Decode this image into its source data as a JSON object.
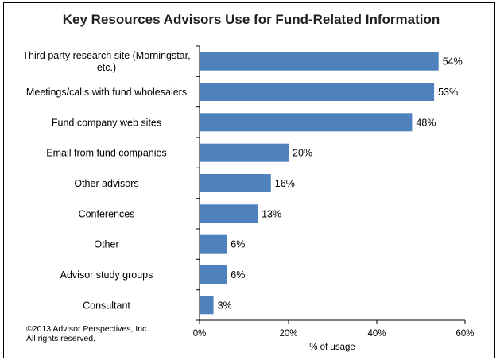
{
  "chart_data": {
    "type": "bar",
    "orientation": "horizontal",
    "title": "Key Resources Advisors Use for Fund-Related Information",
    "categories": [
      [
        "Third party research site (Morningstar,",
        "etc.)"
      ],
      [
        "Meetings/calls with fund wholesalers"
      ],
      [
        "Fund company web sites"
      ],
      [
        "Email from fund companies"
      ],
      [
        "Other advisors"
      ],
      [
        "Conferences"
      ],
      [
        "Other"
      ],
      [
        "Advisor study groups"
      ],
      [
        "Consultant"
      ]
    ],
    "values": [
      54,
      53,
      48,
      20,
      16,
      13,
      6,
      6,
      3
    ],
    "value_labels": [
      "54%",
      "53%",
      "48%",
      "20%",
      "16%",
      "13%",
      "6%",
      "6%",
      "3%"
    ],
    "xlabel": "% of usage",
    "xlim": [
      0,
      60
    ],
    "xticks": [
      0,
      20,
      40,
      60
    ],
    "xtick_labels": [
      "0%",
      "20%",
      "40%",
      "60%"
    ],
    "bar_color": "#4f81bd",
    "grid": false,
    "legend": "none"
  },
  "footer": {
    "copyright_line1": "©2013 Advisor Perspectives, Inc.",
    "copyright_line2": "All rights reserved."
  }
}
